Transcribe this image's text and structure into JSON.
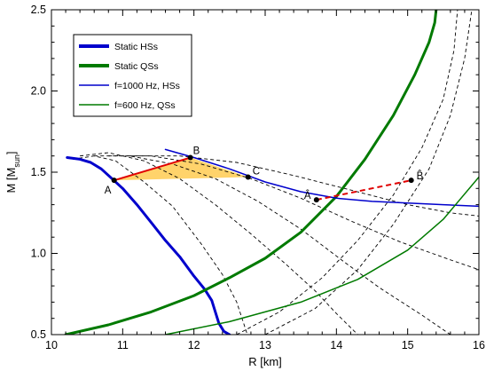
{
  "chart_data": {
    "type": "line",
    "xlabel": "R [km]",
    "ylabel_main": "M [M",
    "ylabel_sub": "sun",
    "ylabel_close": "]",
    "xlim": [
      10,
      16
    ],
    "ylim": [
      0.5,
      2.5
    ],
    "x_ticks": [
      "10",
      "11",
      "12",
      "13",
      "14",
      "15",
      "16"
    ],
    "y_ticks": [
      "0.5",
      "1.0",
      "1.5",
      "2.0",
      "2.5"
    ],
    "grid": false,
    "legend": {
      "placement": "top-left",
      "entries": [
        {
          "label": "Static HSs",
          "color": "#0000cc",
          "style": "thick"
        },
        {
          "label": "Static QSs",
          "color": "#007a00",
          "style": "thick"
        },
        {
          "label": "f=1000 Hz, HSs",
          "color": "#0000cc",
          "style": "thin"
        },
        {
          "label": "f=600 Hz, QSs",
          "color": "#007a00",
          "style": "thin"
        }
      ]
    },
    "series": [
      {
        "name": "Static HSs",
        "color": "#0000cc",
        "width": 3,
        "points": [
          [
            10.22,
            1.59
          ],
          [
            10.4,
            1.58
          ],
          [
            10.55,
            1.56
          ],
          [
            10.7,
            1.52
          ],
          [
            10.85,
            1.46
          ],
          [
            11.0,
            1.4
          ],
          [
            11.2,
            1.3
          ],
          [
            11.4,
            1.19
          ],
          [
            11.6,
            1.08
          ],
          [
            11.8,
            0.98
          ],
          [
            12.0,
            0.86
          ],
          [
            12.15,
            0.78
          ],
          [
            12.25,
            0.71
          ],
          [
            12.3,
            0.64
          ],
          [
            12.35,
            0.57
          ],
          [
            12.42,
            0.52
          ],
          [
            12.5,
            0.5
          ]
        ]
      },
      {
        "name": "Static QSs",
        "color": "#007a00",
        "width": 3,
        "points": [
          [
            10.2,
            0.5
          ],
          [
            10.8,
            0.56
          ],
          [
            11.4,
            0.64
          ],
          [
            12.0,
            0.74
          ],
          [
            12.5,
            0.85
          ],
          [
            13.0,
            0.97
          ],
          [
            13.5,
            1.13
          ],
          [
            14.0,
            1.35
          ],
          [
            14.4,
            1.58
          ],
          [
            14.8,
            1.85
          ],
          [
            15.1,
            2.1
          ],
          [
            15.3,
            2.3
          ],
          [
            15.38,
            2.42
          ],
          [
            15.4,
            2.5
          ]
        ]
      },
      {
        "name": "f=1000 Hz, HSs",
        "color": "#0000cc",
        "width": 1.5,
        "points": [
          [
            11.6,
            1.64
          ],
          [
            12.0,
            1.59
          ],
          [
            12.5,
            1.52
          ],
          [
            13.0,
            1.44
          ],
          [
            13.5,
            1.38
          ],
          [
            14.0,
            1.34
          ],
          [
            14.5,
            1.32
          ],
          [
            15.0,
            1.31
          ],
          [
            15.5,
            1.3
          ],
          [
            16.0,
            1.29
          ]
        ]
      },
      {
        "name": "f=600 Hz, QSs",
        "color": "#007a00",
        "width": 1.5,
        "points": [
          [
            11.6,
            0.5
          ],
          [
            12.5,
            0.58
          ],
          [
            13.5,
            0.7
          ],
          [
            14.3,
            0.84
          ],
          [
            15.0,
            1.02
          ],
          [
            15.5,
            1.21
          ],
          [
            16.0,
            1.47
          ]
        ]
      }
    ],
    "dashed_curves": [
      [
        [
          10.3,
          1.58
        ],
        [
          10.6,
          1.6
        ],
        [
          10.9,
          1.57
        ],
        [
          11.3,
          1.44
        ],
        [
          11.7,
          1.29
        ],
        [
          12.1,
          1.06
        ],
        [
          12.4,
          0.87
        ],
        [
          12.6,
          0.7
        ],
        [
          12.75,
          0.5
        ]
      ],
      [
        [
          10.4,
          1.6
        ],
        [
          10.8,
          1.62
        ],
        [
          11.3,
          1.57
        ],
        [
          11.8,
          1.46
        ],
        [
          12.3,
          1.3
        ],
        [
          12.8,
          1.12
        ],
        [
          13.3,
          0.93
        ],
        [
          13.7,
          0.77
        ],
        [
          14.0,
          0.63
        ],
        [
          14.3,
          0.5
        ]
      ],
      [
        [
          10.6,
          1.6
        ],
        [
          11.1,
          1.6
        ],
        [
          11.7,
          1.55
        ],
        [
          12.3,
          1.46
        ],
        [
          12.9,
          1.32
        ],
        [
          13.5,
          1.15
        ],
        [
          14.1,
          0.95
        ],
        [
          14.6,
          0.79
        ],
        [
          15.2,
          0.62
        ],
        [
          15.6,
          0.5
        ]
      ],
      [
        [
          10.8,
          1.6
        ],
        [
          11.4,
          1.6
        ],
        [
          12.1,
          1.55
        ],
        [
          12.8,
          1.46
        ],
        [
          13.5,
          1.34
        ],
        [
          14.2,
          1.2
        ],
        [
          14.9,
          1.07
        ],
        [
          15.6,
          0.96
        ],
        [
          16.0,
          0.9
        ]
      ],
      [
        [
          11.1,
          1.6
        ],
        [
          11.8,
          1.6
        ],
        [
          12.6,
          1.56
        ],
        [
          13.4,
          1.48
        ],
        [
          14.2,
          1.39
        ],
        [
          15.0,
          1.3
        ],
        [
          15.6,
          1.25
        ],
        [
          16.0,
          1.23
        ]
      ],
      [
        [
          12.6,
          0.5
        ],
        [
          13.2,
          0.64
        ],
        [
          13.8,
          0.85
        ],
        [
          14.3,
          1.08
        ],
        [
          14.8,
          1.36
        ],
        [
          15.2,
          1.65
        ],
        [
          15.5,
          1.95
        ],
        [
          15.65,
          2.25
        ],
        [
          15.7,
          2.5
        ]
      ],
      [
        [
          13.0,
          0.5
        ],
        [
          13.7,
          0.66
        ],
        [
          14.3,
          0.9
        ],
        [
          14.8,
          1.18
        ],
        [
          15.3,
          1.52
        ],
        [
          15.6,
          1.85
        ],
        [
          15.8,
          2.2
        ],
        [
          15.9,
          2.5
        ]
      ]
    ],
    "shaded_region": {
      "color": "#ffd36b",
      "points": [
        [
          10.88,
          1.45
        ],
        [
          11.95,
          1.59
        ],
        [
          12.76,
          1.47
        ]
      ]
    },
    "points": [
      {
        "label": "A",
        "x": 10.88,
        "y": 1.45
      },
      {
        "label": "B",
        "x": 11.95,
        "y": 1.59
      },
      {
        "label": "C",
        "x": 12.76,
        "y": 1.47
      },
      {
        "label": "Â",
        "x": 13.72,
        "y": 1.33
      },
      {
        "label": "B̂",
        "x": 15.05,
        "y": 1.45
      }
    ],
    "red_segments": [
      {
        "style": "solid",
        "from": [
          10.88,
          1.45
        ],
        "to": [
          11.95,
          1.59
        ]
      },
      {
        "style": "dashed",
        "from": [
          13.72,
          1.33
        ],
        "to": [
          15.05,
          1.45
        ]
      }
    ]
  }
}
